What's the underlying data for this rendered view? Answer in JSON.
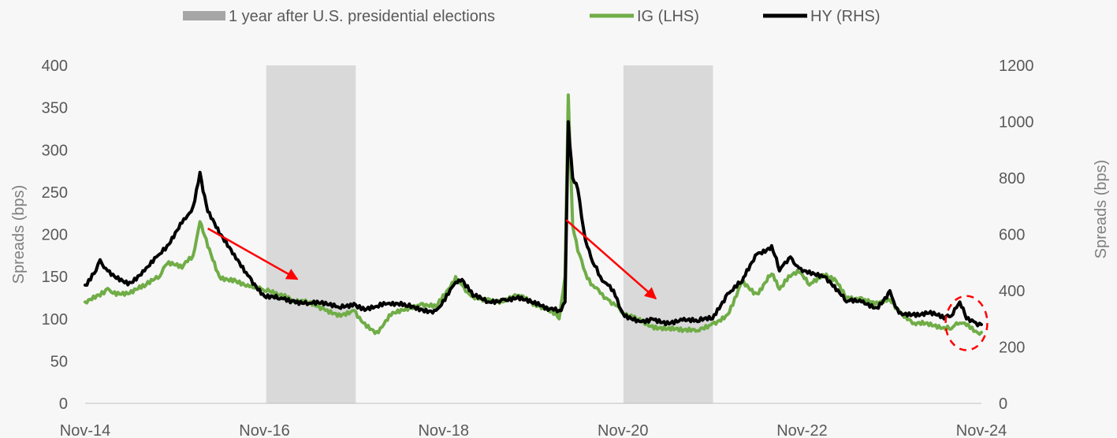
{
  "chart_data": {
    "type": "line",
    "title": "",
    "legend": {
      "placement": "top",
      "items": [
        {
          "label": "1 year after U.S. presidential elections",
          "kind": "band",
          "color": "#a6a6a6"
        },
        {
          "label": "IG (LHS)",
          "kind": "line",
          "color": "#70ad47"
        },
        {
          "label": "HY (RHS)",
          "kind": "line",
          "color": "#000000"
        }
      ]
    },
    "x_axis": {
      "type": "date",
      "range": [
        "2014-11-01",
        "2024-11-01"
      ],
      "tick_labels": [
        "Nov-14",
        "Nov-16",
        "Nov-18",
        "Nov-20",
        "Nov-22",
        "Nov-24"
      ],
      "tick_dates": [
        "2014-11-01",
        "2016-11-01",
        "2018-11-01",
        "2020-11-01",
        "2022-11-01",
        "2024-11-01"
      ]
    },
    "y_left": {
      "label": "Spreads (bps)",
      "range": [
        0,
        400
      ],
      "ticks": [
        0,
        50,
        100,
        150,
        200,
        250,
        300,
        350,
        400
      ],
      "tick_labels": [
        "0",
        "50",
        "100",
        "150",
        "200",
        "250",
        "300",
        "350",
        "400"
      ]
    },
    "y_right": {
      "label": "Spreads (bps)",
      "range": [
        0,
        1200
      ],
      "ticks": [
        0,
        200,
        400,
        600,
        800,
        1000,
        1200
      ],
      "tick_labels": [
        "0",
        "200",
        "400",
        "600",
        "800",
        "1000",
        "1200"
      ]
    },
    "grid": false,
    "bands": [
      {
        "start": "2016-11-08",
        "end": "2017-11-08"
      },
      {
        "start": "2020-11-03",
        "end": "2021-11-03"
      }
    ],
    "annotations": [
      {
        "type": "arrow",
        "color": "#ff0000",
        "from": {
          "x": "2016-03-15",
          "y": 207
        },
        "to": {
          "x": "2017-03-15",
          "y": 147
        }
      },
      {
        "type": "arrow",
        "color": "#ff0000",
        "from": {
          "x": "2020-03-15",
          "y": 217
        },
        "to": {
          "x": "2021-03-15",
          "y": 124
        }
      },
      {
        "type": "dashed-circle",
        "color": "#ff0000",
        "center": {
          "x": "2024-09-01",
          "y": 95
        },
        "rx_days": 85,
        "ry": 32
      }
    ],
    "series": [
      {
        "name": "IG (LHS)",
        "axis": "left",
        "color": "#70ad47",
        "x": [
          "2014-11-01",
          "2015-01-01",
          "2015-02-01",
          "2015-03-01",
          "2015-05-01",
          "2015-07-01",
          "2015-09-01",
          "2015-10-01",
          "2015-12-01",
          "2016-01-15",
          "2016-02-12",
          "2016-03-15",
          "2016-05-01",
          "2016-07-01",
          "2016-09-01",
          "2016-11-01",
          "2017-01-01",
          "2017-03-01",
          "2017-05-01",
          "2017-07-01",
          "2017-09-01",
          "2017-11-01",
          "2017-12-15",
          "2018-02-01",
          "2018-04-01",
          "2018-06-01",
          "2018-08-01",
          "2018-10-01",
          "2018-12-20",
          "2019-01-15",
          "2019-03-01",
          "2019-05-01",
          "2019-07-01",
          "2019-09-01",
          "2019-11-01",
          "2020-01-01",
          "2020-02-15",
          "2020-03-10",
          "2020-03-23",
          "2020-04-10",
          "2020-05-01",
          "2020-06-01",
          "2020-07-01",
          "2020-08-01",
          "2020-09-01",
          "2020-10-01",
          "2020-11-01",
          "2021-01-01",
          "2021-03-01",
          "2021-05-01",
          "2021-07-01",
          "2021-09-01",
          "2021-11-01",
          "2022-01-01",
          "2022-03-01",
          "2022-05-01",
          "2022-06-30",
          "2022-08-01",
          "2022-09-15",
          "2022-10-20",
          "2022-12-01",
          "2023-02-01",
          "2023-03-20",
          "2023-05-01",
          "2023-07-01",
          "2023-09-01",
          "2023-10-25",
          "2023-12-01",
          "2024-02-01",
          "2024-04-01",
          "2024-06-01",
          "2024-07-01",
          "2024-08-05",
          "2024-09-01",
          "2024-10-01",
          "2024-11-01"
        ],
        "values": [
          120,
          127,
          136,
          132,
          130,
          138,
          150,
          165,
          160,
          175,
          215,
          185,
          150,
          147,
          138,
          133,
          128,
          120,
          118,
          112,
          106,
          110,
          95,
          85,
          104,
          113,
          118,
          114,
          150,
          140,
          126,
          124,
          120,
          128,
          116,
          113,
          100,
          150,
          365,
          210,
          180,
          155,
          140,
          130,
          123,
          116,
          106,
          98,
          92,
          88,
          85,
          86,
          95,
          105,
          145,
          130,
          153,
          135,
          150,
          155,
          140,
          150,
          145,
          125,
          125,
          120,
          122,
          110,
          95,
          92,
          90,
          88,
          95,
          92,
          85,
          84
        ]
      },
      {
        "name": "HY (RHS)",
        "axis": "right",
        "color": "#000000",
        "x": [
          "2014-11-01",
          "2014-12-15",
          "2015-01-01",
          "2015-02-01",
          "2015-03-01",
          "2015-05-01",
          "2015-07-01",
          "2015-09-01",
          "2015-10-01",
          "2015-12-01",
          "2016-01-15",
          "2016-02-12",
          "2016-03-15",
          "2016-05-01",
          "2016-07-01",
          "2016-09-01",
          "2016-11-01",
          "2017-01-01",
          "2017-03-01",
          "2017-05-01",
          "2017-07-01",
          "2017-09-01",
          "2017-11-01",
          "2017-12-15",
          "2018-02-01",
          "2018-04-01",
          "2018-06-01",
          "2018-08-01",
          "2018-10-01",
          "2018-12-20",
          "2019-01-15",
          "2019-03-01",
          "2019-05-01",
          "2019-07-01",
          "2019-09-01",
          "2019-11-01",
          "2020-01-01",
          "2020-02-15",
          "2020-03-10",
          "2020-03-23",
          "2020-04-10",
          "2020-05-01",
          "2020-06-01",
          "2020-07-01",
          "2020-08-01",
          "2020-09-01",
          "2020-10-01",
          "2020-11-01",
          "2021-01-01",
          "2021-03-01",
          "2021-05-01",
          "2021-07-01",
          "2021-09-01",
          "2021-11-01",
          "2022-01-01",
          "2022-03-01",
          "2022-05-01",
          "2022-06-30",
          "2022-08-01",
          "2022-09-15",
          "2022-10-20",
          "2022-12-01",
          "2023-02-01",
          "2023-03-20",
          "2023-05-01",
          "2023-07-01",
          "2023-09-01",
          "2023-10-25",
          "2023-12-01",
          "2024-02-01",
          "2024-04-01",
          "2024-06-01",
          "2024-07-01",
          "2024-08-05",
          "2024-09-01",
          "2024-10-01",
          "2024-11-01"
        ],
        "values": [
          420,
          470,
          510,
          470,
          450,
          430,
          470,
          530,
          560,
          640,
          700,
          820,
          680,
          600,
          530,
          450,
          380,
          370,
          365,
          355,
          350,
          340,
          355,
          330,
          345,
          350,
          345,
          335,
          330,
          430,
          440,
          380,
          360,
          370,
          380,
          355,
          330,
          330,
          360,
          1000,
          800,
          760,
          580,
          500,
          450,
          420,
          380,
          320,
          295,
          300,
          290,
          295,
          290,
          300,
          390,
          430,
          530,
          560,
          470,
          520,
          480,
          470,
          450,
          400,
          360,
          360,
          340,
          400,
          320,
          320,
          320,
          300,
          310,
          360,
          300,
          290,
          280
        ]
      }
    ]
  }
}
